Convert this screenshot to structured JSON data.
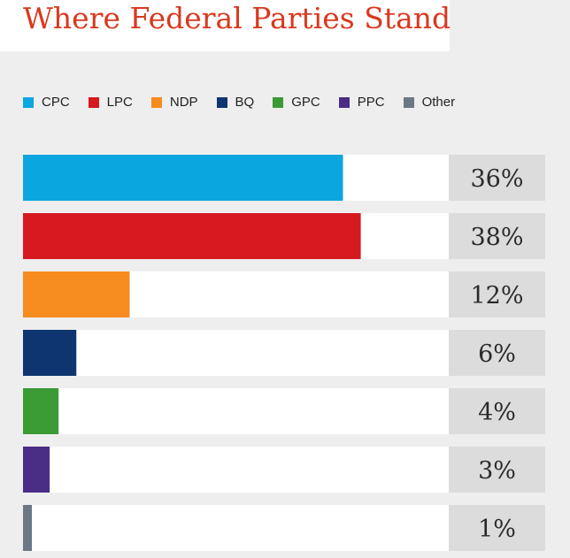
{
  "title": "Where Federal Parties Stand",
  "colors": {
    "title": "#d9391e",
    "background": "#eeeeee",
    "track": "#ffffff",
    "value_box": "#dcdcdc"
  },
  "legend": [
    {
      "label": "CPC",
      "color": "#0aa6df"
    },
    {
      "label": "LPC",
      "color": "#d71920"
    },
    {
      "label": "NDP",
      "color": "#f68b1f"
    },
    {
      "label": "BQ",
      "color": "#0e3570"
    },
    {
      "label": "GPC",
      "color": "#3a9b35"
    },
    {
      "label": "PPC",
      "color": "#4a2d86"
    },
    {
      "label": "Other",
      "color": "#6b7884"
    }
  ],
  "chart_data": {
    "type": "bar",
    "orientation": "horizontal",
    "title": "Where Federal Parties Stand",
    "categories": [
      "CPC",
      "LPC",
      "NDP",
      "BQ",
      "GPC",
      "PPC",
      "Other"
    ],
    "values": [
      36,
      38,
      12,
      6,
      4,
      3,
      1
    ],
    "value_labels": [
      "36%",
      "38%",
      "12%",
      "6%",
      "4%",
      "3%",
      "1%"
    ],
    "colors": [
      "#0aa6df",
      "#d71920",
      "#f68b1f",
      "#0e3570",
      "#3a9b35",
      "#4a2d86",
      "#6b7884"
    ],
    "xlim": [
      0,
      48
    ],
    "grid": false,
    "legend_position": "top"
  }
}
